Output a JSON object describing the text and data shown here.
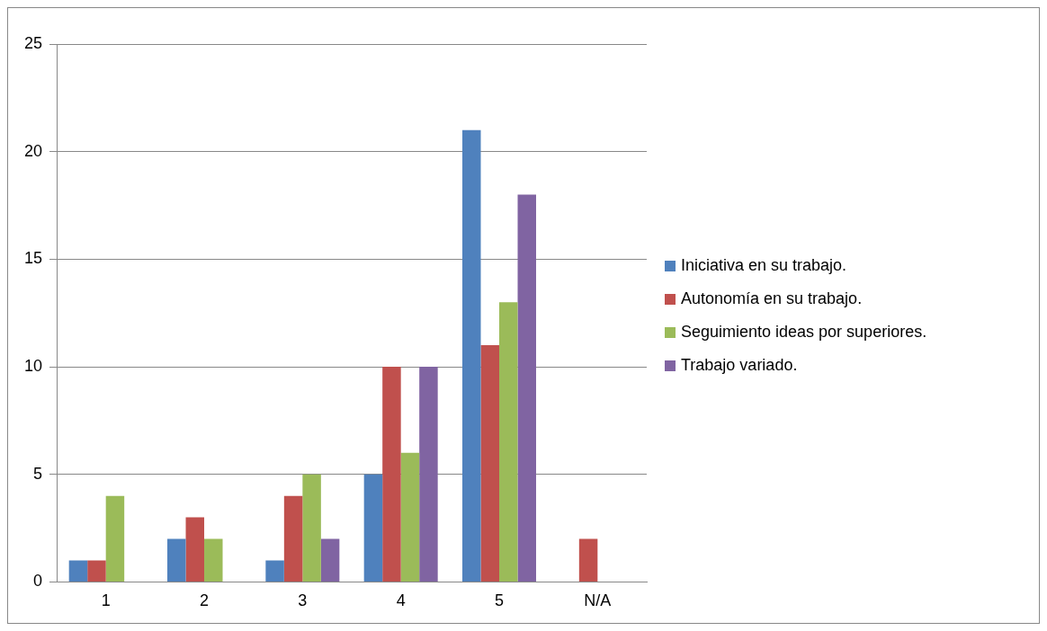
{
  "chart_data": {
    "type": "bar",
    "categories": [
      "1",
      "2",
      "3",
      "4",
      "5",
      "N/A"
    ],
    "series": [
      {
        "name": "Iniciativa en su trabajo.",
        "color": "#4f81bd",
        "values": [
          1,
          2,
          1,
          5,
          21,
          0
        ]
      },
      {
        "name": "Autonomía en su trabajo.",
        "color": "#c0504d",
        "values": [
          1,
          3,
          4,
          10,
          11,
          2
        ]
      },
      {
        "name": "Seguimiento ideas por superiores.",
        "color": "#9bbb59",
        "values": [
          4,
          2,
          5,
          6,
          13,
          0
        ]
      },
      {
        "name": "Trabajo variado.",
        "color": "#8064a2",
        "values": [
          0,
          0,
          2,
          10,
          18,
          0
        ]
      }
    ],
    "ylim": [
      0,
      25
    ],
    "yticks": [
      0,
      5,
      10,
      15,
      20,
      25
    ],
    "grid": "y",
    "legend": "right"
  }
}
